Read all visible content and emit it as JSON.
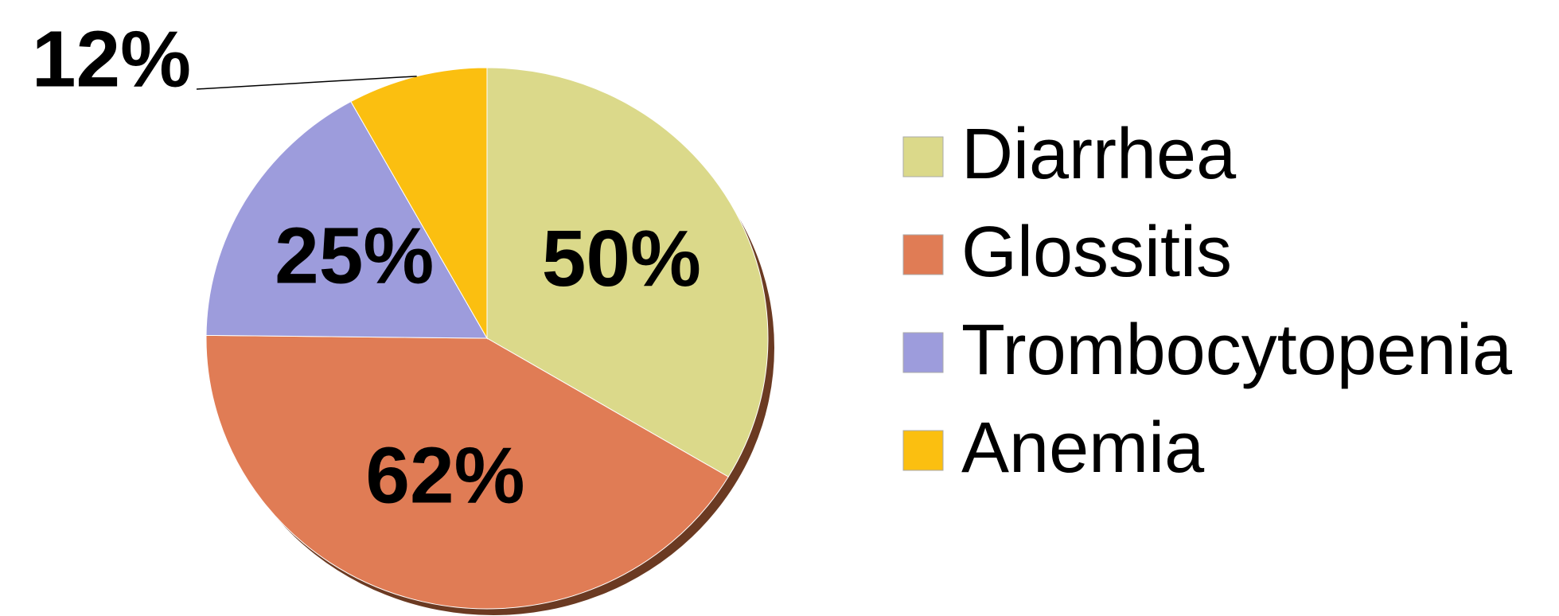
{
  "chart_data": {
    "type": "pie",
    "categories": [
      "Diarrhea",
      "Glossitis",
      "Trombocytopenia",
      "Anemia"
    ],
    "values": [
      50,
      62,
      25,
      12
    ],
    "value_labels": [
      "50%",
      "62%",
      "25%",
      "12%"
    ],
    "colors": [
      "#dbd98a",
      "#e07c55",
      "#9d9cdc",
      "#fbbf10"
    ],
    "legend": "right"
  }
}
